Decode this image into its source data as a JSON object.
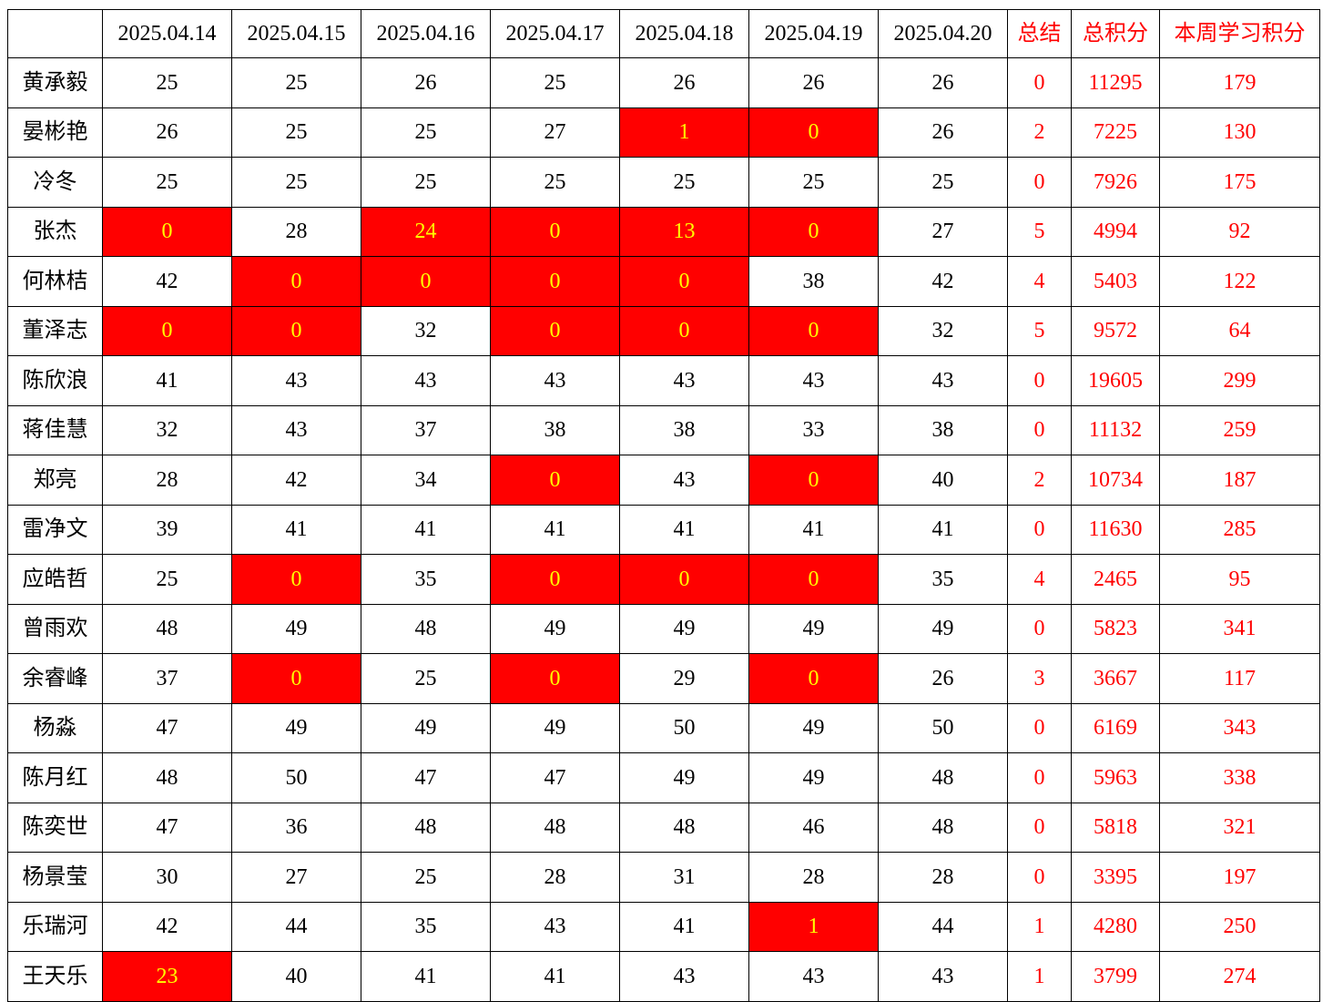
{
  "table": {
    "corner_label": "",
    "date_columns": [
      "2025.04.14",
      "2025.04.15",
      "2025.04.16",
      "2025.04.17",
      "2025.04.18",
      "2025.04.19",
      "2025.04.20"
    ],
    "summary_columns": [
      "总结",
      "总积分",
      "本周学习积分"
    ],
    "rows": [
      {
        "name": "黄承毅",
        "days": [
          "25",
          "25",
          "26",
          "25",
          "26",
          "26",
          "26"
        ],
        "red_days": [],
        "summary": "0",
        "total": "11295",
        "week": "179"
      },
      {
        "name": "晏彬艳",
        "days": [
          "26",
          "25",
          "25",
          "27",
          "1",
          "0",
          "26"
        ],
        "red_days": [
          4,
          5
        ],
        "summary": "2",
        "total": "7225",
        "week": "130"
      },
      {
        "name": "冷冬",
        "days": [
          "25",
          "25",
          "25",
          "25",
          "25",
          "25",
          "25"
        ],
        "red_days": [],
        "summary": "0",
        "total": "7926",
        "week": "175"
      },
      {
        "name": "张杰",
        "days": [
          "0",
          "28",
          "24",
          "0",
          "13",
          "0",
          "27"
        ],
        "red_days": [
          0,
          2,
          3,
          4,
          5
        ],
        "summary": "5",
        "total": "4994",
        "week": "92"
      },
      {
        "name": "何林桔",
        "days": [
          "42",
          "0",
          "0",
          "0",
          "0",
          "38",
          "42"
        ],
        "red_days": [
          1,
          2,
          3,
          4
        ],
        "summary": "4",
        "total": "5403",
        "week": "122"
      },
      {
        "name": "董泽志",
        "days": [
          "0",
          "0",
          "32",
          "0",
          "0",
          "0",
          "32"
        ],
        "red_days": [
          0,
          1,
          3,
          4,
          5
        ],
        "summary": "5",
        "total": "9572",
        "week": "64"
      },
      {
        "name": "陈欣浪",
        "days": [
          "41",
          "43",
          "43",
          "43",
          "43",
          "43",
          "43"
        ],
        "red_days": [],
        "summary": "0",
        "total": "19605",
        "week": "299"
      },
      {
        "name": "蒋佳慧",
        "days": [
          "32",
          "43",
          "37",
          "38",
          "38",
          "33",
          "38"
        ],
        "red_days": [],
        "summary": "0",
        "total": "11132",
        "week": "259"
      },
      {
        "name": "郑亮",
        "days": [
          "28",
          "42",
          "34",
          "0",
          "43",
          "0",
          "40"
        ],
        "red_days": [
          3,
          5
        ],
        "summary": "2",
        "total": "10734",
        "week": "187"
      },
      {
        "name": "雷净文",
        "days": [
          "39",
          "41",
          "41",
          "41",
          "41",
          "41",
          "41"
        ],
        "red_days": [],
        "summary": "0",
        "total": "11630",
        "week": "285"
      },
      {
        "name": "应皓哲",
        "days": [
          "25",
          "0",
          "35",
          "0",
          "0",
          "0",
          "35"
        ],
        "red_days": [
          1,
          3,
          4,
          5
        ],
        "summary": "4",
        "total": "2465",
        "week": "95"
      },
      {
        "name": "曾雨欢",
        "days": [
          "48",
          "49",
          "48",
          "49",
          "49",
          "49",
          "49"
        ],
        "red_days": [],
        "summary": "0",
        "total": "5823",
        "week": "341"
      },
      {
        "name": "余睿峰",
        "days": [
          "37",
          "0",
          "25",
          "0",
          "29",
          "0",
          "26"
        ],
        "red_days": [
          1,
          3,
          5
        ],
        "summary": "3",
        "total": "3667",
        "week": "117"
      },
      {
        "name": "杨淼",
        "days": [
          "47",
          "49",
          "49",
          "49",
          "50",
          "49",
          "50"
        ],
        "red_days": [],
        "summary": "0",
        "total": "6169",
        "week": "343"
      },
      {
        "name": "陈月红",
        "days": [
          "48",
          "50",
          "47",
          "47",
          "49",
          "49",
          "48"
        ],
        "red_days": [],
        "summary": "0",
        "total": "5963",
        "week": "338"
      },
      {
        "name": "陈奕世",
        "days": [
          "47",
          "36",
          "48",
          "48",
          "48",
          "46",
          "48"
        ],
        "red_days": [],
        "summary": "0",
        "total": "5818",
        "week": "321"
      },
      {
        "name": "杨景莹",
        "days": [
          "30",
          "27",
          "25",
          "28",
          "31",
          "28",
          "28"
        ],
        "red_days": [],
        "summary": "0",
        "total": "3395",
        "week": "197"
      },
      {
        "name": "乐瑞河",
        "days": [
          "42",
          "44",
          "35",
          "43",
          "41",
          "1",
          "44"
        ],
        "red_days": [
          5
        ],
        "summary": "1",
        "total": "4280",
        "week": "250"
      },
      {
        "name": "王天乐",
        "days": [
          "23",
          "40",
          "41",
          "41",
          "43",
          "43",
          "43"
        ],
        "red_days": [
          0
        ],
        "summary": "1",
        "total": "3799",
        "week": "274"
      }
    ]
  },
  "colors": {
    "highlight_bg": "#FF0000",
    "highlight_text": "#FFFF00",
    "accent_text": "#FF0000",
    "grid_line": "#000000",
    "cell_bg": "#FFFFFF"
  }
}
